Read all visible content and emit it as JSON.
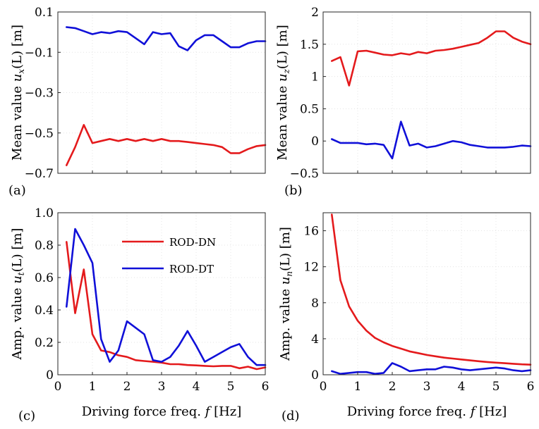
{
  "colors": {
    "rod_dn": "#e41a1c",
    "rod_dt": "#1010d8"
  },
  "legend": {
    "dn": "ROD-DN",
    "dt": "ROD-DT"
  },
  "chart_data": [
    {
      "id": "a",
      "type": "line",
      "panel_label": "(a)",
      "xlabel": "",
      "ylabel_prefix": "Mean value ",
      "ylabel_math": "u",
      "ylabel_sub": "x",
      "ylabel_suffix": "(L) [m]",
      "xlim": [
        0,
        6
      ],
      "ylim": [
        -0.7,
        0.1
      ],
      "xticks": [
        1,
        2,
        3,
        4,
        5,
        6
      ],
      "xtick_labels": [],
      "yticks": [
        0.1,
        -0.1,
        -0.3,
        -0.5,
        -0.7
      ],
      "ytick_labels": [
        "0.1",
        "−0.1",
        "−0.3",
        "−0.5",
        "−0.7"
      ],
      "grid": true,
      "series": [
        {
          "name": "ROD-DN",
          "key": "rod_dn",
          "x": [
            0.25,
            0.5,
            0.75,
            1.0,
            1.25,
            1.5,
            1.75,
            2.0,
            2.25,
            2.5,
            2.75,
            3.0,
            3.25,
            3.5,
            3.75,
            4.0,
            4.25,
            4.5,
            4.75,
            5.0,
            5.25,
            5.5,
            5.75,
            6.0
          ],
          "y": [
            -0.66,
            -0.57,
            -0.46,
            -0.55,
            -0.54,
            -0.53,
            -0.54,
            -0.53,
            -0.54,
            -0.53,
            -0.54,
            -0.53,
            -0.54,
            -0.54,
            -0.545,
            -0.55,
            -0.555,
            -0.56,
            -0.57,
            -0.6,
            -0.6,
            -0.58,
            -0.565,
            -0.56
          ]
        },
        {
          "name": "ROD-DT",
          "key": "rod_dt",
          "x": [
            0.25,
            0.5,
            0.75,
            1.0,
            1.25,
            1.5,
            1.75,
            2.0,
            2.25,
            2.5,
            2.75,
            3.0,
            3.25,
            3.5,
            3.75,
            4.0,
            4.25,
            4.5,
            4.75,
            5.0,
            5.25,
            5.5,
            5.75,
            6.0
          ],
          "y": [
            0.025,
            0.02,
            0.005,
            -0.01,
            0.0,
            -0.005,
            0.005,
            0.0,
            -0.03,
            -0.06,
            0.0,
            -0.01,
            -0.005,
            -0.07,
            -0.09,
            -0.04,
            -0.015,
            -0.015,
            -0.045,
            -0.075,
            -0.075,
            -0.055,
            -0.045,
            -0.045
          ]
        }
      ]
    },
    {
      "id": "b",
      "type": "line",
      "panel_label": "(b)",
      "xlabel": "",
      "ylabel_prefix": "Mean value ",
      "ylabel_math": "u",
      "ylabel_sub": "z",
      "ylabel_suffix": "(L) [m]",
      "xlim": [
        0,
        6
      ],
      "ylim": [
        -0.5,
        2
      ],
      "xticks": [
        1,
        2,
        3,
        4,
        5,
        6
      ],
      "xtick_labels": [],
      "yticks": [
        2,
        1.5,
        1,
        0.5,
        0,
        -0.5
      ],
      "ytick_labels": [
        "2",
        "1.5",
        "1",
        "0.5",
        "0",
        "−0.5"
      ],
      "grid": true,
      "series": [
        {
          "name": "ROD-DN",
          "key": "rod_dn",
          "x": [
            0.25,
            0.5,
            0.75,
            1.0,
            1.25,
            1.5,
            1.75,
            2.0,
            2.25,
            2.5,
            2.75,
            3.0,
            3.25,
            3.5,
            3.75,
            4.0,
            4.25,
            4.5,
            4.75,
            5.0,
            5.25,
            5.5,
            5.75,
            6.0
          ],
          "y": [
            1.24,
            1.3,
            0.86,
            1.39,
            1.4,
            1.37,
            1.34,
            1.33,
            1.36,
            1.34,
            1.38,
            1.36,
            1.4,
            1.41,
            1.43,
            1.46,
            1.49,
            1.52,
            1.6,
            1.7,
            1.7,
            1.6,
            1.54,
            1.5
          ]
        },
        {
          "name": "ROD-DT",
          "key": "rod_dt",
          "x": [
            0.25,
            0.5,
            0.75,
            1.0,
            1.25,
            1.5,
            1.75,
            2.0,
            2.25,
            2.5,
            2.75,
            3.0,
            3.25,
            3.5,
            3.75,
            4.0,
            4.25,
            4.5,
            4.75,
            5.0,
            5.25,
            5.5,
            5.75,
            6.0
          ],
          "y": [
            0.03,
            -0.03,
            -0.03,
            -0.03,
            -0.05,
            -0.04,
            -0.06,
            -0.27,
            0.3,
            -0.07,
            -0.04,
            -0.1,
            -0.08,
            -0.04,
            0.0,
            -0.02,
            -0.06,
            -0.08,
            -0.1,
            -0.1,
            -0.1,
            -0.09,
            -0.07,
            -0.08
          ]
        }
      ]
    },
    {
      "id": "c",
      "type": "line",
      "panel_label": "(c)",
      "xlabel_prefix": "Driving force freq. ",
      "xlabel_math": "f",
      "xlabel_suffix": " [Hz]",
      "ylabel_prefix": "Amp. value ",
      "ylabel_math": "u",
      "ylabel_sub": "t",
      "ylabel_suffix": "(L) [m]",
      "xlim": [
        0,
        6
      ],
      "ylim": [
        0,
        1.0
      ],
      "xticks": [
        0,
        1,
        2,
        3,
        4,
        5,
        6
      ],
      "xtick_labels": [
        "0",
        "1",
        "2",
        "3",
        "4",
        "5",
        "6"
      ],
      "yticks": [
        0,
        0.2,
        0.4,
        0.6,
        0.8,
        1.0
      ],
      "ytick_labels": [
        "0",
        "0.2",
        "0.4",
        "0.6",
        "0.8",
        "1.0"
      ],
      "grid": true,
      "legend": "top-center",
      "series": [
        {
          "name": "ROD-DN",
          "key": "rod_dn",
          "x": [
            0.25,
            0.5,
            0.75,
            1.0,
            1.25,
            1.5,
            1.75,
            2.0,
            2.25,
            2.5,
            2.75,
            3.0,
            3.25,
            3.5,
            3.75,
            4.0,
            4.25,
            4.5,
            4.75,
            5.0,
            5.25,
            5.5,
            5.75,
            6.0
          ],
          "y": [
            0.82,
            0.38,
            0.65,
            0.25,
            0.15,
            0.14,
            0.12,
            0.11,
            0.09,
            0.085,
            0.08,
            0.075,
            0.065,
            0.065,
            0.06,
            0.058,
            0.055,
            0.052,
            0.055,
            0.055,
            0.04,
            0.05,
            0.035,
            0.045
          ]
        },
        {
          "name": "ROD-DT",
          "key": "rod_dt",
          "x": [
            0.25,
            0.5,
            0.75,
            1.0,
            1.25,
            1.5,
            1.75,
            2.0,
            2.25,
            2.5,
            2.75,
            3.0,
            3.25,
            3.5,
            3.75,
            4.0,
            4.25,
            4.5,
            4.75,
            5.0,
            5.25,
            5.5,
            5.75,
            6.0
          ],
          "y": [
            0.42,
            0.9,
            0.8,
            0.69,
            0.22,
            0.08,
            0.15,
            0.33,
            0.29,
            0.25,
            0.09,
            0.08,
            0.11,
            0.18,
            0.27,
            0.18,
            0.08,
            0.11,
            0.14,
            0.17,
            0.19,
            0.11,
            0.06,
            0.06
          ]
        }
      ]
    },
    {
      "id": "d",
      "type": "line",
      "panel_label": "(d)",
      "xlabel_prefix": "Driving force freq. ",
      "xlabel_math": "f",
      "xlabel_suffix": " [Hz]",
      "ylabel_prefix": "Amp. value ",
      "ylabel_math": "u",
      "ylabel_sub": "n",
      "ylabel_suffix": "(L) [m]",
      "xlim": [
        0,
        6
      ],
      "ylim": [
        0,
        18
      ],
      "xticks": [
        0,
        1,
        2,
        3,
        4,
        5,
        6
      ],
      "xtick_labels": [
        "0",
        "1",
        "2",
        "3",
        "4",
        "5",
        "6"
      ],
      "yticks": [
        0,
        4,
        8,
        12,
        16
      ],
      "ytick_labels": [
        "0",
        "4",
        "8",
        "12",
        "16"
      ],
      "grid": true,
      "series": [
        {
          "name": "ROD-DN",
          "key": "rod_dn",
          "x": [
            0.25,
            0.5,
            0.75,
            1.0,
            1.25,
            1.5,
            1.75,
            2.0,
            2.25,
            2.5,
            2.75,
            3.0,
            3.25,
            3.5,
            3.75,
            4.0,
            4.25,
            4.5,
            4.75,
            5.0,
            5.25,
            5.5,
            5.75,
            6.0
          ],
          "y": [
            17.8,
            10.5,
            7.6,
            6.0,
            4.9,
            4.1,
            3.6,
            3.2,
            2.9,
            2.6,
            2.4,
            2.2,
            2.05,
            1.9,
            1.8,
            1.7,
            1.6,
            1.5,
            1.42,
            1.35,
            1.28,
            1.22,
            1.16,
            1.12
          ]
        },
        {
          "name": "ROD-DT",
          "key": "rod_dt",
          "x": [
            0.25,
            0.5,
            0.75,
            1.0,
            1.25,
            1.5,
            1.75,
            2.0,
            2.25,
            2.5,
            2.75,
            3.0,
            3.25,
            3.5,
            3.75,
            4.0,
            4.25,
            4.5,
            4.75,
            5.0,
            5.25,
            5.5,
            5.75,
            6.0
          ],
          "y": [
            0.4,
            0.1,
            0.2,
            0.3,
            0.3,
            0.1,
            0.2,
            1.3,
            0.9,
            0.4,
            0.5,
            0.6,
            0.6,
            0.9,
            0.8,
            0.6,
            0.5,
            0.6,
            0.7,
            0.8,
            0.7,
            0.5,
            0.4,
            0.5
          ]
        }
      ]
    }
  ]
}
